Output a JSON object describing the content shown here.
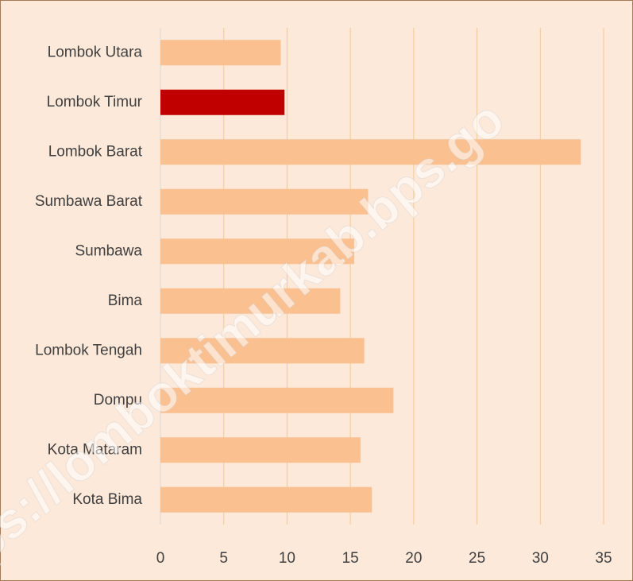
{
  "chart_data": {
    "type": "barh",
    "categories": [
      "Lombok Utara",
      "Lombok Timur",
      "Lombok Barat",
      "Sumbawa Barat",
      "Sumbawa",
      "Bima",
      "Lombok Tengah",
      "Dompu",
      "Kota Mataram",
      "Kota Bima"
    ],
    "values": [
      9.5,
      9.8,
      33.2,
      16.4,
      15.3,
      14.2,
      16.1,
      18.4,
      15.8,
      16.7
    ],
    "colors": [
      "#fac090",
      "#c00000",
      "#fac090",
      "#fac090",
      "#fac090",
      "#fac090",
      "#fac090",
      "#fac090",
      "#fac090",
      "#fac090"
    ],
    "xlim": [
      0,
      35
    ],
    "xticks": [
      0,
      5,
      10,
      15,
      20,
      25,
      30,
      35
    ],
    "grid": true,
    "grid_color": "#f2c896",
    "watermark": "ps://lomboktimurkab.bps.go"
  }
}
